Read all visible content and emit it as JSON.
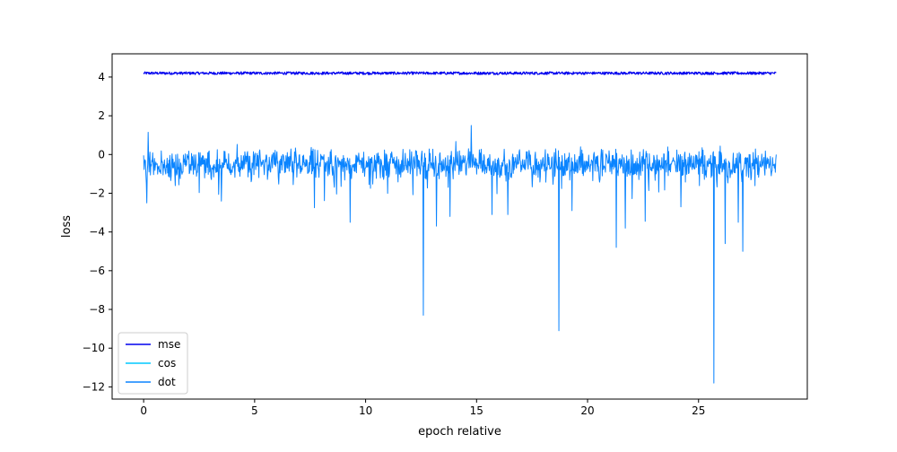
{
  "chart_data": {
    "type": "line",
    "title": "",
    "xlabel": "epoch relative",
    "ylabel": "loss",
    "xlim": [
      -1.42,
      29.9
    ],
    "ylim": [
      -12.63,
      5.2
    ],
    "xticks": [
      0,
      5,
      10,
      15,
      20,
      25
    ],
    "xtick_labels": [
      "0",
      "5",
      "10",
      "15",
      "20",
      "25"
    ],
    "yticks": [
      -12,
      -10,
      -8,
      -6,
      -4,
      -2,
      0,
      2,
      4
    ],
    "ytick_labels": [
      "−12",
      "−10",
      "−8",
      "−6",
      "−4",
      "−2",
      "0",
      "2",
      "4"
    ],
    "grid": false,
    "legend_position": "lower left",
    "x_range": [
      0,
      28.5
    ],
    "series": [
      {
        "name": "mse",
        "color": "#0000ee",
        "baseline": 4.2,
        "noise_amplitude": 0.07,
        "spikes": []
      },
      {
        "name": "cos",
        "color": "#00c8ff",
        "baseline": null,
        "noise_amplitude": 0,
        "spikes": []
      },
      {
        "name": "dot",
        "color": "#0a84ff",
        "baseline": -0.5,
        "noise_amplitude": 0.85,
        "spikes": [
          {
            "x": 0.15,
            "y": -2.5
          },
          {
            "x": 0.2,
            "y": 1.15
          },
          {
            "x": 7.7,
            "y": -2.75
          },
          {
            "x": 9.3,
            "y": -3.5
          },
          {
            "x": 12.6,
            "y": -8.3
          },
          {
            "x": 13.2,
            "y": -3.7
          },
          {
            "x": 13.8,
            "y": -3.2
          },
          {
            "x": 14.75,
            "y": 1.5
          },
          {
            "x": 15.7,
            "y": -3.1
          },
          {
            "x": 16.4,
            "y": -3.1
          },
          {
            "x": 18.7,
            "y": -9.1
          },
          {
            "x": 19.3,
            "y": -2.9
          },
          {
            "x": 21.3,
            "y": -4.8
          },
          {
            "x": 21.7,
            "y": -3.8
          },
          {
            "x": 22.6,
            "y": -3.45
          },
          {
            "x": 24.2,
            "y": -2.7
          },
          {
            "x": 25.7,
            "y": -11.8
          },
          {
            "x": 26.2,
            "y": -4.6
          },
          {
            "x": 26.8,
            "y": -3.5
          },
          {
            "x": 27.0,
            "y": -5.0
          }
        ]
      }
    ]
  }
}
